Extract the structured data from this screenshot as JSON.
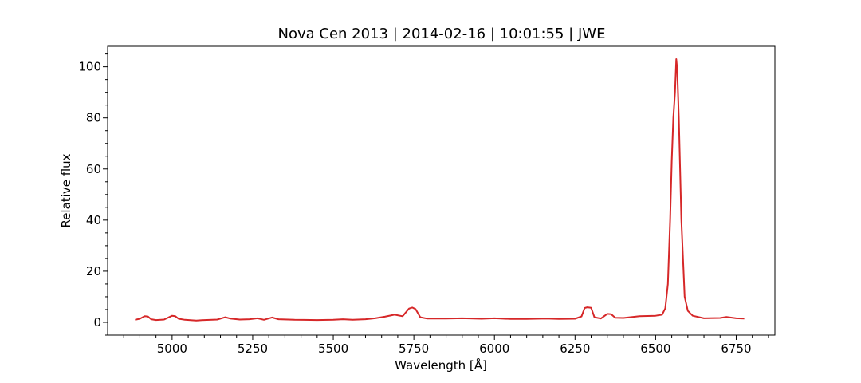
{
  "chart_data": {
    "type": "line",
    "title": "Nova Cen 2013 | 2014-02-16 | 10:01:55 | JWE",
    "xlabel": "Wavelength [Å]",
    "ylabel": "Relative flux",
    "xlim": [
      4800,
      6870
    ],
    "ylim": [
      -5,
      108
    ],
    "xticks": [
      5000,
      5250,
      5500,
      5750,
      6000,
      6250,
      6500,
      6750
    ],
    "yticks": [
      0,
      20,
      40,
      60,
      80,
      100
    ],
    "grid": false,
    "line_color": "#d62728",
    "series": [
      {
        "x": [
          4885,
          4900,
          4915,
          4925,
          4935,
          4950,
          4975,
          5000,
          5010,
          5020,
          5040,
          5075,
          5100,
          5140,
          5165,
          5180,
          5210,
          5240,
          5265,
          5285,
          5310,
          5330,
          5380,
          5450,
          5500,
          5530,
          5560,
          5600,
          5630,
          5660,
          5690,
          5715,
          5735,
          5745,
          5755,
          5770,
          5790,
          5850,
          5900,
          5960,
          6000,
          6050,
          6100,
          6160,
          6200,
          6250,
          6270,
          6280,
          6288,
          6300,
          6310,
          6330,
          6350,
          6362,
          6375,
          6400,
          6450,
          6500,
          6520,
          6530,
          6538,
          6545,
          6550,
          6555,
          6560,
          6564,
          6567,
          6572,
          6580,
          6590,
          6600,
          6615,
          6650,
          6700,
          6720,
          6750,
          6775
        ],
        "y": [
          1.0,
          1.4,
          2.4,
          2.3,
          1.2,
          0.9,
          1.1,
          2.6,
          2.4,
          1.4,
          1.0,
          0.7,
          0.9,
          1.1,
          2.0,
          1.5,
          1.1,
          1.2,
          1.6,
          1.0,
          1.9,
          1.2,
          1.0,
          0.9,
          1.0,
          1.2,
          1.0,
          1.2,
          1.6,
          2.2,
          3.0,
          2.4,
          5.4,
          5.8,
          5.2,
          2.0,
          1.5,
          1.5,
          1.6,
          1.4,
          1.6,
          1.3,
          1.3,
          1.5,
          1.3,
          1.4,
          2.3,
          5.6,
          5.9,
          5.7,
          2.0,
          1.5,
          3.3,
          3.2,
          1.8,
          1.7,
          2.4,
          2.6,
          3.0,
          5.5,
          15.0,
          40.0,
          63.0,
          80.0,
          90.0,
          103.0,
          99.0,
          80.0,
          40.0,
          10.0,
          4.5,
          2.6,
          1.6,
          1.7,
          2.1,
          1.6,
          1.5
        ]
      }
    ]
  }
}
